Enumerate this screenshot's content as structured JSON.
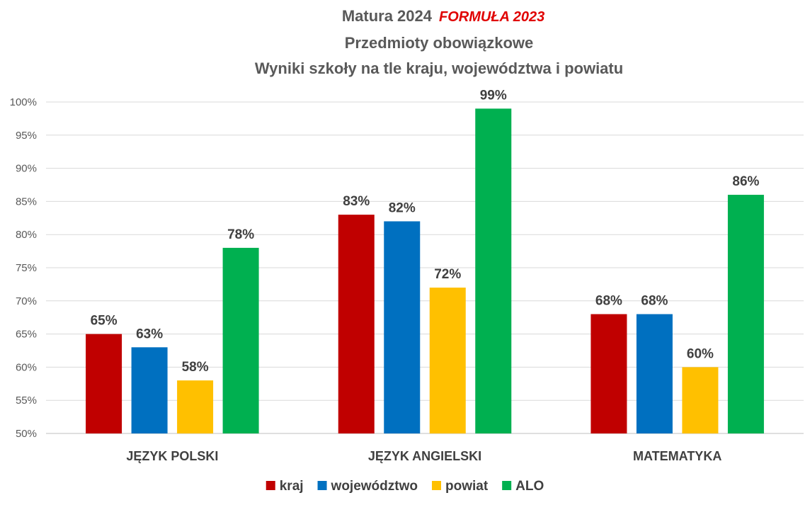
{
  "chart_data": {
    "type": "bar",
    "title_line1_main": "Matura 2024",
    "title_line1_accent": "FORMUŁA 2023",
    "title_line2": "Przedmioty obowiązkowe",
    "title_line3": "Wyniki szkoły na tle kraju, województwa i powiatu",
    "categories": [
      "JĘZYK POLSKI",
      "JĘZYK ANGIELSKI",
      "MATEMATYKA"
    ],
    "series": [
      {
        "name": "kraj",
        "color": "#c00000",
        "values": [
          65,
          83,
          68
        ]
      },
      {
        "name": "województwo",
        "color": "#0070c0",
        "values": [
          63,
          82,
          68
        ]
      },
      {
        "name": "powiat",
        "color": "#ffc000",
        "values": [
          58,
          72,
          60
        ]
      },
      {
        "name": "ALO",
        "color": "#00b050",
        "values": [
          78,
          99,
          86
        ]
      }
    ],
    "ylim": [
      50,
      100
    ],
    "yticks": [
      "50%",
      "55%",
      "60%",
      "65%",
      "70%",
      "75%",
      "80%",
      "85%",
      "90%",
      "95%",
      "100%"
    ],
    "value_suffix": "%",
    "grid": true,
    "legend_position": "bottom",
    "accent_color": "#e00000"
  }
}
